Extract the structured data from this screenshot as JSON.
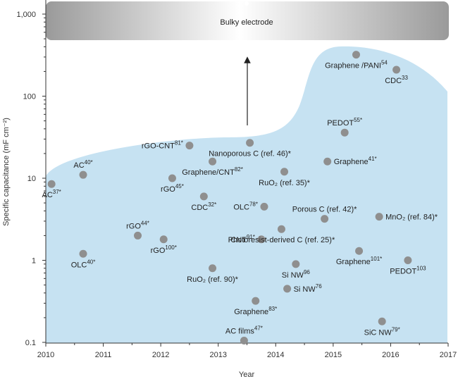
{
  "chart_data": {
    "type": "scatter",
    "xlabel": "Year",
    "ylabel": "Specific capacitance (mF cm⁻²)",
    "xlim": [
      2010,
      2017
    ],
    "ylim": [
      0.1,
      1000
    ],
    "log_y": true,
    "x_ticks": [
      "2010",
      "2011",
      "2012",
      "2013",
      "2014",
      "2015",
      "2016",
      "2017"
    ],
    "y_ticks": [
      {
        "value": 0.1,
        "label": "0.1"
      },
      {
        "value": 1,
        "label": "1"
      },
      {
        "value": 10,
        "label": "10"
      },
      {
        "value": 100,
        "label": "100"
      },
      {
        "value": 1000,
        "label": "1,000"
      }
    ],
    "banner": "Bulky electrode",
    "colors": {
      "region": "#c6e2f2",
      "point": "#8f8f8f",
      "axis": "#333333"
    },
    "points": [
      {
        "x": 2010.1,
        "y": 8.5,
        "label": "AC",
        "sup": "37*",
        "anchor": "below"
      },
      {
        "x": 2010.65,
        "y": 11,
        "label": "AC",
        "sup": "40*",
        "anchor": "above"
      },
      {
        "x": 2010.65,
        "y": 1.2,
        "label": "OLC",
        "sup": "40*",
        "anchor": "below"
      },
      {
        "x": 2011.6,
        "y": 2.0,
        "label": "rGO",
        "sup": "44*",
        "anchor": "above"
      },
      {
        "x": 2012.05,
        "y": 1.8,
        "label": "rGO",
        "sup": "100*",
        "anchor": "below"
      },
      {
        "x": 2012.2,
        "y": 10,
        "label": "rGO",
        "sup": "45*",
        "anchor": "below"
      },
      {
        "x": 2012.5,
        "y": 25,
        "label": "rGO-CNT",
        "sup": "81*",
        "anchor": "left"
      },
      {
        "x": 2012.75,
        "y": 6,
        "label": "CDC",
        "sup": "32*",
        "anchor": "below"
      },
      {
        "x": 2012.9,
        "y": 16,
        "label": "Graphene/CNT",
        "sup": "82*",
        "anchor": "below"
      },
      {
        "x": 2012.9,
        "y": 0.8,
        "label": "RuO₂ (ref. 90)*",
        "sup": "",
        "anchor": "below"
      },
      {
        "x": 2013.55,
        "y": 27,
        "label": "Nanoporous C (ref. 46)*",
        "sup": "",
        "anchor": "below"
      },
      {
        "x": 2013.45,
        "y": 0.105,
        "label": "AC films",
        "sup": "47*",
        "anchor": "above"
      },
      {
        "x": 2013.65,
        "y": 0.32,
        "label": "Graphene",
        "sup": "83*",
        "anchor": "below"
      },
      {
        "x": 2013.75,
        "y": 1.8,
        "label": "CNT",
        "sup": "91*",
        "anchor": "left"
      },
      {
        "x": 2013.8,
        "y": 4.5,
        "label": "OLC",
        "sup": "78*",
        "anchor": "left"
      },
      {
        "x": 2014.1,
        "y": 2.4,
        "label": "Photoresist-derived C (ref. 25)*",
        "sup": "",
        "anchor": "below"
      },
      {
        "x": 2014.15,
        "y": 12,
        "label": "RuO₂ (ref. 35)*",
        "sup": "",
        "anchor": "below"
      },
      {
        "x": 2014.2,
        "y": 0.45,
        "label": "Si NW",
        "sup": "76",
        "anchor": "right"
      },
      {
        "x": 2014.35,
        "y": 0.9,
        "label": "Si NW",
        "sup": "96",
        "anchor": "below"
      },
      {
        "x": 2014.85,
        "y": 3.2,
        "label": "Porous C (ref. 42)*",
        "sup": "",
        "anchor": "above"
      },
      {
        "x": 2014.9,
        "y": 16,
        "label": "Graphene",
        "sup": "41*",
        "anchor": "right"
      },
      {
        "x": 2015.2,
        "y": 36,
        "label": "PEDOT",
        "sup": "55*",
        "anchor": "above"
      },
      {
        "x": 2015.4,
        "y": 320,
        "label": "Graphene /PANI",
        "sup": "54",
        "anchor": "below"
      },
      {
        "x": 2015.45,
        "y": 1.3,
        "label": "Graphene",
        "sup": "101*",
        "anchor": "below"
      },
      {
        "x": 2015.8,
        "y": 3.4,
        "label": "MnO₂ (ref. 84)*",
        "sup": "",
        "anchor": "right"
      },
      {
        "x": 2015.85,
        "y": 0.18,
        "label": "SiC NW",
        "sup": "79*",
        "anchor": "below"
      },
      {
        "x": 2016.1,
        "y": 210,
        "label": "CDC",
        "sup": "33",
        "anchor": "below"
      },
      {
        "x": 2016.3,
        "y": 1.0,
        "label": "PEDOT",
        "sup": "103",
        "anchor": "below"
      }
    ]
  }
}
